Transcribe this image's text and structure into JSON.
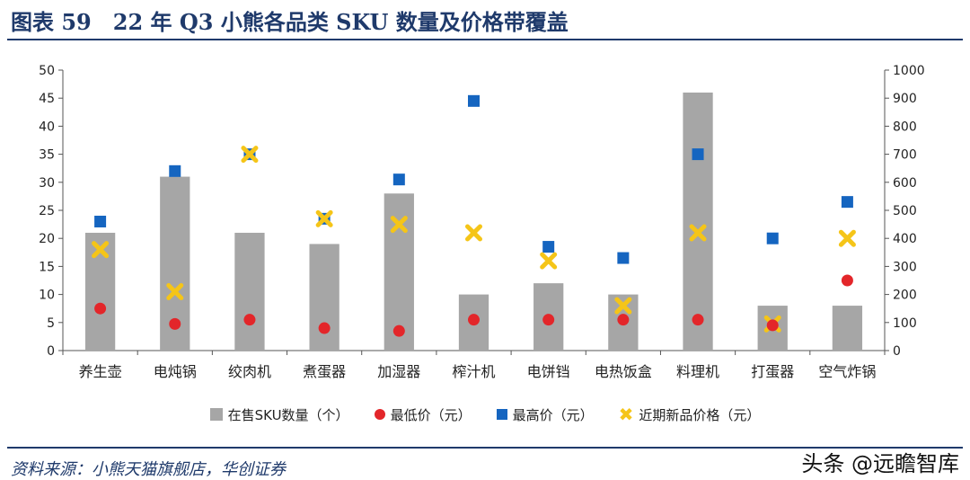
{
  "header": {
    "title": "图表 59　22 年 Q3 小熊各品类 SKU 数量及价格带覆盖"
  },
  "footer": {
    "source": "资料来源：小熊天猫旗舰店，华创证券",
    "watermark": "头条 @远瞻智库"
  },
  "colors": {
    "bar": "#a6a6a6",
    "min": "#e3262a",
    "max": "#1565c0",
    "new": "#f5c518",
    "accent": "#1f3a6b"
  },
  "chart_data": {
    "type": "bar",
    "categories": [
      "养生壶",
      "电炖锅",
      "绞肉机",
      "煮蛋器",
      "加湿器",
      "榨汁机",
      "电饼铛",
      "电热饭盒",
      "料理机",
      "打蛋器",
      "空气炸锅"
    ],
    "series": [
      {
        "name": "在售SKU数量（个）",
        "type": "bar",
        "axis": "left",
        "values": [
          21,
          31,
          21,
          19,
          28,
          10,
          12,
          10,
          46,
          8,
          8
        ]
      },
      {
        "name": "最低价（元）",
        "type": "scatter",
        "marker": "circle",
        "axis": "right",
        "values": [
          150,
          95,
          110,
          80,
          70,
          110,
          110,
          110,
          110,
          90,
          250
        ]
      },
      {
        "name": "最高价（元）",
        "type": "scatter",
        "marker": "square",
        "axis": "right",
        "values": [
          460,
          640,
          700,
          470,
          610,
          890,
          370,
          330,
          700,
          400,
          530
        ]
      },
      {
        "name": "近期新品价格（元）",
        "type": "scatter",
        "marker": "x",
        "axis": "right",
        "values": [
          360,
          210,
          700,
          470,
          450,
          420,
          320,
          160,
          420,
          95,
          400
        ]
      }
    ],
    "yleft": {
      "lim": [
        0,
        50
      ],
      "ticks": [
        "0",
        "5",
        "10",
        "15",
        "20",
        "25",
        "30",
        "35",
        "40",
        "45",
        "50"
      ]
    },
    "yright": {
      "lim": [
        0,
        1000
      ],
      "ticks": [
        "0",
        "100",
        "200",
        "300",
        "400",
        "500",
        "600",
        "700",
        "800",
        "900",
        "1000"
      ]
    },
    "grid": false,
    "legend": "bottom"
  }
}
